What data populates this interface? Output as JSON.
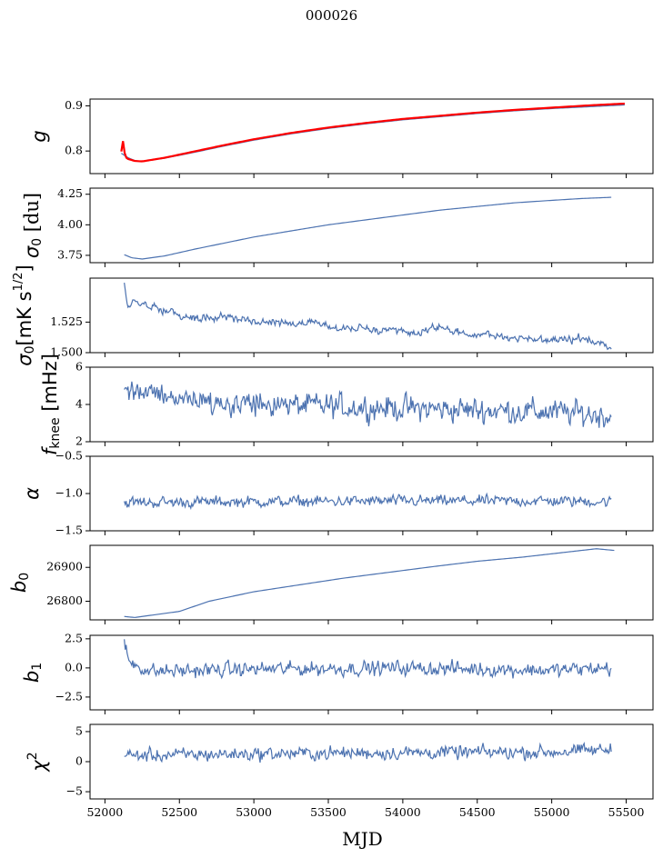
{
  "figure": {
    "title": "000026"
  },
  "colors": {
    "series": "#4c72b0",
    "fit": "#ff0000",
    "axis": "#000000"
  },
  "chart_data": [
    {
      "type": "line",
      "panel": "g",
      "ylabel_tex": "g",
      "xlim": [
        51900,
        55680
      ],
      "ylim": [
        0.75,
        0.915
      ],
      "yticks": [
        0.8,
        0.9
      ],
      "ytick_labels": [
        "0.8",
        "0.9"
      ],
      "x_range": [
        52110,
        55490
      ],
      "series": [
        {
          "color": "#4c72b0",
          "x": [
            52110,
            52150,
            52200,
            52250,
            52400,
            52600,
            52800,
            53000,
            53250,
            53500,
            53750,
            54000,
            54250,
            54500,
            54750,
            55000,
            55250,
            55490
          ],
          "values": [
            0.795,
            0.786,
            0.779,
            0.777,
            0.784,
            0.797,
            0.811,
            0.824,
            0.838,
            0.85,
            0.86,
            0.869,
            0.876,
            0.883,
            0.889,
            0.894,
            0.898,
            0.902
          ]
        },
        {
          "color": "#ff0000",
          "x": [
            52110,
            52120,
            52130,
            52150,
            52200,
            52250,
            52400,
            52600,
            52800,
            53000,
            53250,
            53500,
            53750,
            54000,
            54250,
            54500,
            54750,
            55000,
            55250,
            55490
          ],
          "values": [
            0.8,
            0.82,
            0.79,
            0.783,
            0.778,
            0.777,
            0.785,
            0.799,
            0.813,
            0.826,
            0.84,
            0.852,
            0.862,
            0.871,
            0.878,
            0.885,
            0.891,
            0.896,
            0.901,
            0.905
          ]
        }
      ]
    },
    {
      "type": "line",
      "panel": "sigma0_du",
      "ylabel_tex": "σ0 [du]",
      "xlim": [
        51900,
        55680
      ],
      "ylim": [
        3.69,
        4.3
      ],
      "yticks": [
        3.75,
        4.0,
        4.25
      ],
      "ytick_labels": [
        "3.75",
        "4.00",
        "4.25"
      ],
      "x_range": [
        52130,
        55400
      ],
      "series": [
        {
          "color": "#4c72b0",
          "x": [
            52130,
            52180,
            52250,
            52400,
            52600,
            52800,
            53000,
            53250,
            53500,
            53750,
            54000,
            54250,
            54500,
            54750,
            55000,
            55200,
            55400
          ],
          "values": [
            3.755,
            3.73,
            3.72,
            3.745,
            3.8,
            3.85,
            3.9,
            3.95,
            4.0,
            4.04,
            4.08,
            4.12,
            4.15,
            4.18,
            4.2,
            4.215,
            4.225
          ]
        }
      ]
    },
    {
      "type": "line",
      "panel": "sigma0_mK",
      "ylabel_tex": "σ0[mK s1/2]",
      "xlim": [
        51900,
        55680
      ],
      "ylim": [
        1.5,
        1.561
      ],
      "yticks": [
        1.5,
        1.525
      ],
      "ytick_labels": [
        "1.500",
        "1.525"
      ],
      "x_range": [
        52130,
        55400
      ],
      "noise": 0.0025,
      "series": [
        {
          "color": "#4c72b0",
          "x": [
            52130,
            52150,
            52200,
            52400,
            52600,
            52800,
            53000,
            53300,
            53600,
            53900,
            54100,
            54200,
            54400,
            54700,
            55000,
            55200,
            55350,
            55400
          ],
          "values": [
            1.557,
            1.538,
            1.542,
            1.535,
            1.528,
            1.53,
            1.525,
            1.525,
            1.52,
            1.518,
            1.515,
            1.522,
            1.515,
            1.513,
            1.51,
            1.512,
            1.506,
            1.503
          ]
        }
      ]
    },
    {
      "type": "line",
      "panel": "fknee",
      "ylabel_tex": "fknee [mHz]",
      "xlim": [
        51900,
        55680
      ],
      "ylim": [
        2,
        6
      ],
      "yticks": [
        2,
        4,
        6
      ],
      "ytick_labels": [
        "2",
        "4",
        "6"
      ],
      "x_range": [
        52130,
        55400
      ],
      "noise": 0.55,
      "series": [
        {
          "color": "#4c72b0",
          "x": [
            52130,
            52400,
            52700,
            53000,
            53500,
            54000,
            54500,
            55000,
            55400
          ],
          "values": [
            4.7,
            4.5,
            4.2,
            4.0,
            3.9,
            3.8,
            3.7,
            3.6,
            3.4
          ]
        }
      ]
    },
    {
      "type": "line",
      "panel": "alpha",
      "ylabel_tex": "α",
      "xlim": [
        51900,
        55680
      ],
      "ylim": [
        -1.5,
        -0.5
      ],
      "yticks": [
        -1.5,
        -1.0,
        -0.5
      ],
      "ytick_labels": [
        "−1.5",
        "−1.0",
        "−0.5"
      ],
      "x_range": [
        52130,
        55400
      ],
      "noise": 0.06,
      "series": [
        {
          "color": "#4c72b0",
          "x": [
            52130,
            53000,
            54000,
            55000,
            55400
          ],
          "values": [
            -1.12,
            -1.11,
            -1.1,
            -1.1,
            -1.11
          ]
        }
      ]
    },
    {
      "type": "line",
      "panel": "b0",
      "ylabel_tex": "b0",
      "xlim": [
        51900,
        55680
      ],
      "ylim": [
        26745,
        26965
      ],
      "yticks": [
        26800,
        26900
      ],
      "ytick_labels": [
        "26800",
        "26900"
      ],
      "x_range": [
        52130,
        55420
      ],
      "series": [
        {
          "color": "#4c72b0",
          "x": [
            52130,
            52200,
            52300,
            52500,
            52700,
            53000,
            53300,
            53600,
            53900,
            54200,
            54500,
            54800,
            55100,
            55300,
            55420
          ],
          "values": [
            26755,
            26752,
            26758,
            26770,
            26800,
            26828,
            26848,
            26868,
            26885,
            26902,
            26918,
            26930,
            26945,
            26955,
            26950
          ]
        }
      ]
    },
    {
      "type": "line",
      "panel": "b1",
      "ylabel_tex": "b1",
      "xlim": [
        51900,
        55680
      ],
      "ylim": [
        -3.6,
        2.8
      ],
      "yticks": [
        -2.5,
        0.0,
        2.5
      ],
      "ytick_labels": [
        "−2.5",
        "0.0",
        "2.5"
      ],
      "x_range": [
        52130,
        55400
      ],
      "noise": 0.5,
      "series": [
        {
          "color": "#4c72b0",
          "x": [
            52130,
            52160,
            52300,
            53000,
            54000,
            55000,
            55400
          ],
          "values": [
            2.3,
            0.6,
            -0.3,
            -0.1,
            0.0,
            -0.2,
            0.0
          ]
        }
      ]
    },
    {
      "type": "line",
      "panel": "chi2",
      "ylabel_tex": "χ2",
      "xlim": [
        51900,
        55680
      ],
      "ylim": [
        -6.2,
        6.2
      ],
      "yticks": [
        -5,
        0,
        5
      ],
      "ytick_labels": [
        "−5",
        "0",
        "5"
      ],
      "x_range": [
        52130,
        55400
      ],
      "noise": 0.9,
      "series": [
        {
          "color": "#4c72b0",
          "x": [
            52130,
            53000,
            54000,
            55000,
            55400
          ],
          "values": [
            1.0,
            1.3,
            1.5,
            1.6,
            2.0
          ]
        }
      ]
    }
  ],
  "shared_xaxis": {
    "label": "MJD",
    "ticks": [
      52000,
      52500,
      53000,
      53500,
      54000,
      54500,
      55000,
      55500
    ],
    "tick_labels": [
      "52000",
      "52500",
      "53000",
      "53500",
      "54000",
      "54500",
      "55000",
      "55500"
    ]
  }
}
